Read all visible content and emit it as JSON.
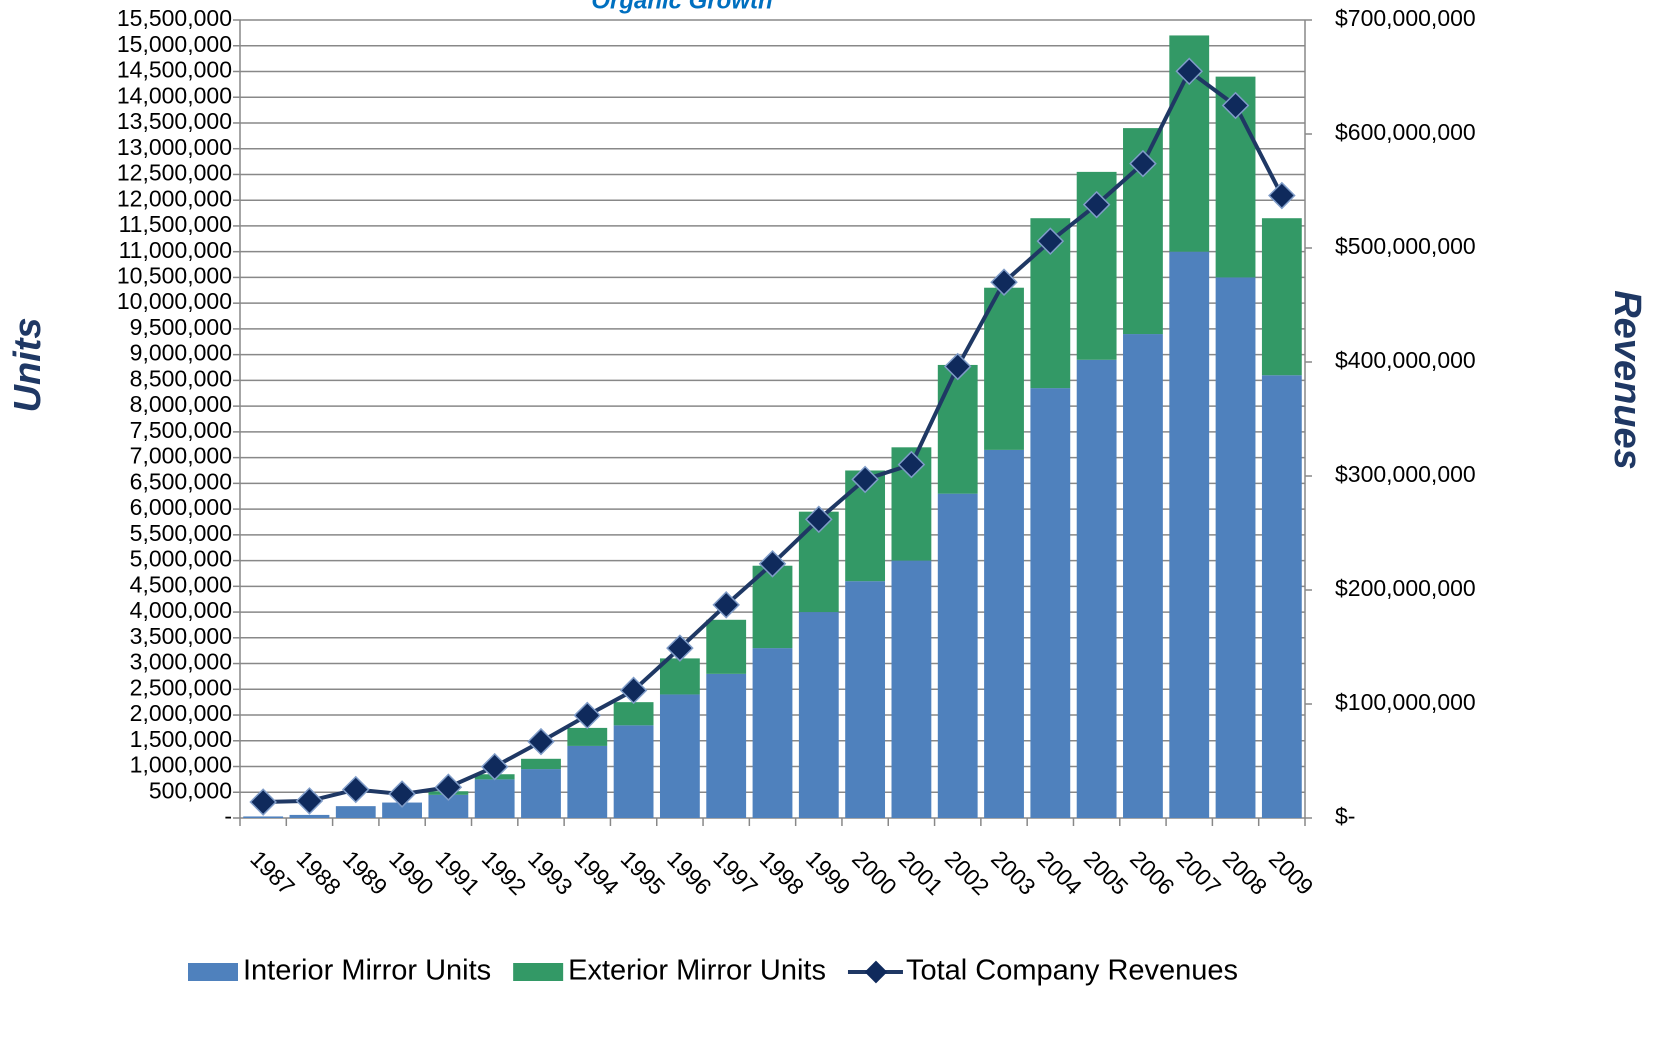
{
  "chart_data": {
    "type": "bar-line",
    "title": "Organic Growth",
    "y_label": "Units",
    "y2_label": "Revenues",
    "categories": [
      "1987",
      "1988",
      "1989",
      "1990",
      "1991",
      "1992",
      "1993",
      "1994",
      "1995",
      "1996",
      "1997",
      "1998",
      "1999",
      "2000",
      "2001",
      "2002",
      "2003",
      "2004",
      "2005",
      "2006",
      "2007",
      "2008",
      "2009"
    ],
    "series": [
      {
        "name": "Interior Mirror Units",
        "color": "#4f81bd",
        "kind": "bar",
        "values": [
          30000,
          60000,
          230000,
          300000,
          450000,
          750000,
          950000,
          1400000,
          1800000,
          2400000,
          2800000,
          3300000,
          4000000,
          4600000,
          5000000,
          6300000,
          7150000,
          8350000,
          8900000,
          9400000,
          11000000,
          10500000,
          8600000
        ]
      },
      {
        "name": "Exterior Mirror Units",
        "color": "#339966",
        "kind": "bar",
        "values": [
          0,
          0,
          0,
          0,
          70000,
          100000,
          200000,
          350000,
          450000,
          700000,
          1050000,
          1600000,
          1950000,
          2150000,
          2200000,
          2500000,
          3150000,
          3300000,
          3650000,
          4000000,
          4200000,
          3900000,
          3050000
        ]
      },
      {
        "name": "Total Company Revenues",
        "color": "#1f3864",
        "kind": "line",
        "axis": "y2",
        "values": [
          14000000,
          15000000,
          25000000,
          21000000,
          27000000,
          45000000,
          67000000,
          90000000,
          112000000,
          149000000,
          187000000,
          223000000,
          262000000,
          297000000,
          310000000,
          396000000,
          470000000,
          506000000,
          538000000,
          574000000,
          655000000,
          625000000,
          546000000
        ]
      }
    ],
    "ylim": [
      0,
      15500000
    ],
    "yticks": [
      {
        "value": 0,
        "label": "-"
      },
      {
        "value": 500000,
        "label": "500,000"
      },
      {
        "value": 1000000,
        "label": "1,000,000"
      },
      {
        "value": 1500000,
        "label": "1,500,000"
      },
      {
        "value": 2000000,
        "label": "2,000,000"
      },
      {
        "value": 2500000,
        "label": "2,500,000"
      },
      {
        "value": 3000000,
        "label": "3,000,000"
      },
      {
        "value": 3500000,
        "label": "3,500,000"
      },
      {
        "value": 4000000,
        "label": "4,000,000"
      },
      {
        "value": 4500000,
        "label": "4,500,000"
      },
      {
        "value": 5000000,
        "label": "5,000,000"
      },
      {
        "value": 5500000,
        "label": "5,500,000"
      },
      {
        "value": 6000000,
        "label": "6,000,000"
      },
      {
        "value": 6500000,
        "label": "6,500,000"
      },
      {
        "value": 7000000,
        "label": "7,000,000"
      },
      {
        "value": 7500000,
        "label": "7,500,000"
      },
      {
        "value": 8000000,
        "label": "8,000,000"
      },
      {
        "value": 8500000,
        "label": "8,500,000"
      },
      {
        "value": 9000000,
        "label": "9,000,000"
      },
      {
        "value": 9500000,
        "label": "9,500,000"
      },
      {
        "value": 10000000,
        "label": "10,000,000"
      },
      {
        "value": 10500000,
        "label": "10,500,000"
      },
      {
        "value": 11000000,
        "label": "11,000,000"
      },
      {
        "value": 11500000,
        "label": "11,500,000"
      },
      {
        "value": 12000000,
        "label": "12,000,000"
      },
      {
        "value": 12500000,
        "label": "12,500,000"
      },
      {
        "value": 13000000,
        "label": "13,000,000"
      },
      {
        "value": 13500000,
        "label": "13,500,000"
      },
      {
        "value": 14000000,
        "label": "14,000,000"
      },
      {
        "value": 14500000,
        "label": "14,500,000"
      },
      {
        "value": 15000000,
        "label": "15,000,000"
      },
      {
        "value": 15500000,
        "label": "15,500,000"
      }
    ],
    "y2lim": [
      0,
      700000000
    ],
    "y2ticks": [
      {
        "value": 0,
        "label": "$-"
      },
      {
        "value": 100000000,
        "label": "$100,000,000"
      },
      {
        "value": 200000000,
        "label": "$200,000,000"
      },
      {
        "value": 300000000,
        "label": "$300,000,000"
      },
      {
        "value": 400000000,
        "label": "$400,000,000"
      },
      {
        "value": 500000000,
        "label": "$500,000,000"
      },
      {
        "value": 600000000,
        "label": "$600,000,000"
      },
      {
        "value": 700000000,
        "label": "$700,000,000"
      }
    ],
    "grid": true,
    "legend": "bottom"
  }
}
